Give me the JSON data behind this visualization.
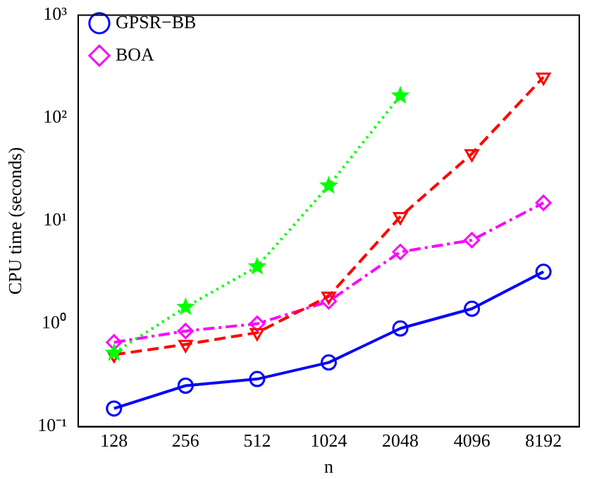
{
  "chart_data": {
    "type": "line",
    "xlabel": "n",
    "ylabel": "CPU time (seconds)",
    "categories": [
      "128",
      "256",
      "512",
      "1024",
      "2048",
      "4096",
      "8192"
    ],
    "log": "y",
    "ylim": [
      0.1,
      1000
    ],
    "yticks": [
      {
        "value": 0.1,
        "label": "10⁻¹"
      },
      {
        "value": 1,
        "label": "10⁰"
      },
      {
        "value": 10,
        "label": "10¹"
      },
      {
        "value": 100,
        "label": "10²"
      },
      {
        "value": 1000,
        "label": "10³"
      }
    ],
    "grid": false,
    "legend": "top left",
    "series": [
      {
        "name": "GPSR−BB",
        "color": "#0000ff",
        "marker": "circle",
        "line_style": "solid",
        "values": [
          0.15,
          0.25,
          0.29,
          0.42,
          0.9,
          1.4,
          3.2
        ]
      },
      {
        "color": "#ff0000",
        "marker": "triangle",
        "line_style": "dashed",
        "values": [
          0.5,
          0.63,
          0.82,
          1.85,
          11,
          45,
          250
        ]
      },
      {
        "color": "#00ff00",
        "marker": "star",
        "line_style": "dotted",
        "values": [
          0.52,
          1.45,
          3.6,
          22,
          165,
          null,
          null
        ]
      },
      {
        "name": "BOA",
        "color": "#ff00ff",
        "marker": "diamond",
        "line_style": "dashdot",
        "values": [
          0.66,
          0.85,
          1.0,
          1.65,
          5.0,
          6.5,
          15
        ]
      }
    ]
  }
}
